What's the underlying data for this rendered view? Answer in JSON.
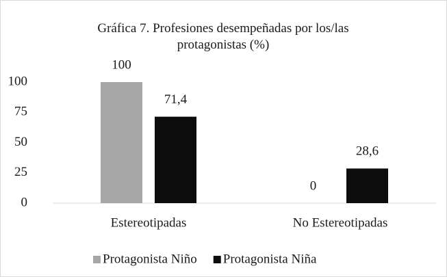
{
  "chart_data": {
    "type": "bar",
    "title": "Gráfica 7. Profesiones desempeñadas por los/las protagonistas (%)",
    "categories": [
      "Estereotipadas",
      "No Estereotipadas"
    ],
    "series": [
      {
        "name": "Protagonista Niño",
        "color": "#a6a6a6",
        "values": [
          100,
          0
        ],
        "value_labels": [
          "100",
          "0"
        ]
      },
      {
        "name": "Protagonista Niña",
        "color": "#0d0d0d",
        "values": [
          71.4,
          28.6
        ],
        "value_labels": [
          "71,4",
          "28,6"
        ]
      }
    ],
    "ylim": [
      0,
      100
    ],
    "yticks": [
      0,
      25,
      50,
      75,
      100
    ],
    "grid": false,
    "legend": "bottom"
  }
}
